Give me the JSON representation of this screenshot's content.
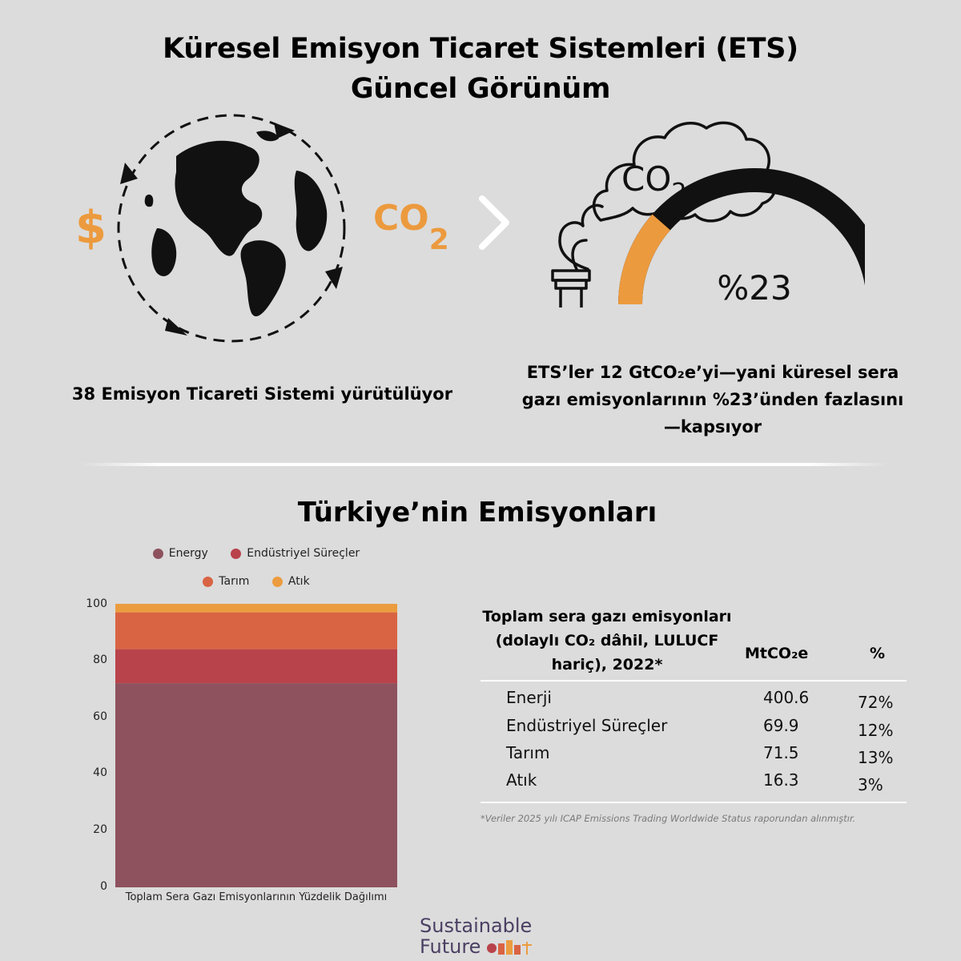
{
  "title": {
    "line1": "Küresel Emisyon Ticaret Sistemleri (ETS)",
    "line2": "Güncel Görünüm"
  },
  "globe_panel": {
    "dollar_symbol": "$",
    "co2_left": "CO",
    "co2_left_sub": "2",
    "caption": "38 Emisyon Ticareti Sistemi yürütülüyor"
  },
  "ets_panel": {
    "cloud_co": "CO",
    "cloud_sub": "2",
    "gauge_label": "%23",
    "gauge_value_pct": 23,
    "caption": "ETS’ler 12 GtCO₂e’yi—yani küresel sera gazı emisyonlarının %23’ünden fazlasını—kapsıyor"
  },
  "section_title": "Türkiye’nin Emisyonları",
  "colors": {
    "background": "#dcdcdc",
    "energy": "#8e525e",
    "industrial": "#b9434a",
    "agriculture": "#d96443",
    "waste": "#eb9c3f",
    "accent": "#ec9a3e"
  },
  "chart_data": {
    "type": "bar",
    "stacked": true,
    "categories": [
      "Toplam Sera Gazı Emisyonlarının Yüzdelik Dağılımı"
    ],
    "series": [
      {
        "name": "Energy",
        "values": [
          72
        ]
      },
      {
        "name": "Endüstriyel Süreçler",
        "values": [
          12
        ]
      },
      {
        "name": "Tarım",
        "values": [
          13
        ]
      },
      {
        "name": "Atık",
        "values": [
          3
        ]
      }
    ],
    "yticks": [
      "0",
      "20",
      "40",
      "60",
      "80",
      "100"
    ],
    "ylim": [
      0,
      100
    ],
    "grid": false,
    "legend": "top"
  },
  "table": {
    "header_metric": "Toplam sera gazı emisyonları (dolaylı CO₂ dâhil, LULUCF hariç), 2022*",
    "header_unit": "MtCO₂e",
    "header_pct": "%",
    "rows": [
      {
        "label": "Enerji",
        "value": "400.6",
        "pct": "72%"
      },
      {
        "label": "Endüstriyel Süreçler",
        "value": "69.9",
        "pct": "12%"
      },
      {
        "label": "Tarım",
        "value": "71.5",
        "pct": "13%"
      },
      {
        "label": "Atık",
        "value": "16.3",
        "pct": "3%"
      }
    ],
    "footnote": "*Veriler 2025 yılı  ICAP Emissions Trading Worldwide Status  raporundan alınmıştır."
  },
  "brand": {
    "line1": "Sustainable",
    "line2": "Future"
  }
}
